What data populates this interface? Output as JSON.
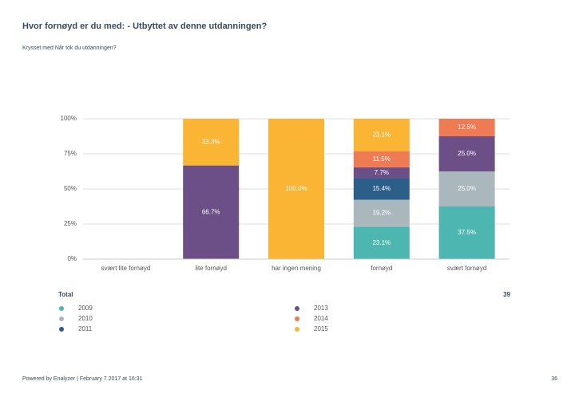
{
  "title": "Hvor fornøyd er du med: - Utbyttet av denne utdanningen?",
  "subtitle": "Krysset med Når tok du utdanningen?",
  "chart_data": {
    "type": "stacked-bar",
    "categories": [
      "svært lite fornøyd",
      "lite fornøyd",
      "har ingen mening",
      "fornøyd",
      "svært fornøyd"
    ],
    "series": [
      {
        "name": "2009",
        "color": "#4db6b0",
        "values": [
          null,
          null,
          null,
          23.1,
          37.5
        ],
        "value_labels": [
          null,
          null,
          null,
          "23.1%",
          "37.5%"
        ]
      },
      {
        "name": "2010",
        "color": "#aab8bd",
        "values": [
          null,
          null,
          null,
          19.2,
          25.0
        ],
        "value_labels": [
          null,
          null,
          null,
          "19.2%",
          "25.0%"
        ]
      },
      {
        "name": "2011",
        "color": "#2b5f8a",
        "values": [
          null,
          null,
          null,
          15.4,
          null
        ],
        "value_labels": [
          null,
          null,
          null,
          "15.4%",
          null
        ]
      },
      {
        "name": "2013",
        "color": "#6b4f86",
        "values": [
          null,
          66.7,
          null,
          7.7,
          25.0
        ],
        "value_labels": [
          null,
          "66.7%",
          null,
          "7.7%",
          "25.0%"
        ]
      },
      {
        "name": "2014",
        "color": "#ef7b54",
        "values": [
          null,
          null,
          null,
          11.5,
          12.5
        ],
        "value_labels": [
          null,
          null,
          null,
          "11.5%",
          "12.5%"
        ]
      },
      {
        "name": "2015",
        "color": "#fbb534",
        "values": [
          null,
          33.3,
          100.0,
          23.1,
          null
        ],
        "value_labels": [
          null,
          "33.3%",
          "100.0%",
          "23.1%",
          null
        ]
      }
    ],
    "ylim": [
      0,
      100
    ],
    "yticks": [
      {
        "value": 0,
        "label": "0%"
      },
      {
        "value": 25,
        "label": "25%"
      },
      {
        "value": 50,
        "label": "50%"
      },
      {
        "value": 75,
        "label": "75%"
      },
      {
        "value": 100,
        "label": "100%"
      }
    ],
    "grid": true,
    "total_label": "Total",
    "total": 39
  },
  "footer": {
    "text": "Powered by Enalyzer | February 7 2017 at 16:31",
    "page": "36"
  }
}
